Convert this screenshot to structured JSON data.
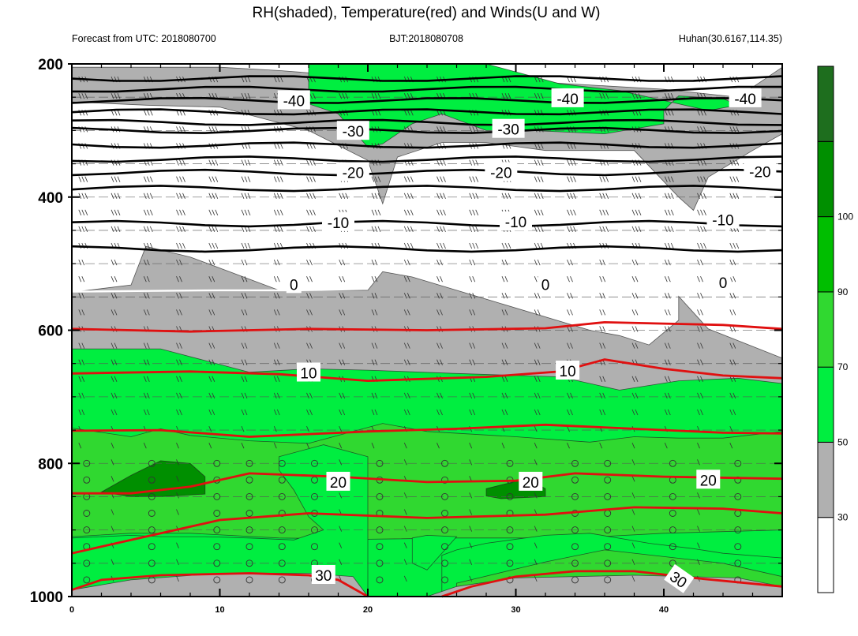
{
  "chart_data": {
    "type": "time-height cross section",
    "title": "RH(shaded), Temperature(red) and Winds(U and W)",
    "subtitle_left": "Forecast from UTC: 2018080700",
    "subtitle_center": "BJT:2018080708",
    "subtitle_right": "Huhan(30.6167,114.35)",
    "xlim": [
      0,
      48
    ],
    "ylim": [
      1000,
      200
    ],
    "y_ticks": [
      "200",
      "400",
      "600",
      "800",
      "1000"
    ],
    "x_ticks": [
      "0",
      "10",
      "20",
      "30",
      "40"
    ],
    "colorbar": {
      "labels": [
        "30",
        "50",
        "70",
        "90",
        "100"
      ],
      "colors": [
        "#ffffff",
        "#b0b0b0",
        "#00ee40",
        "#30d830",
        "#00be00",
        "#008f00",
        "#1e6e1e"
      ]
    },
    "contour_labels": [
      {
        "text": "-40",
        "x": 15,
        "p": 255
      },
      {
        "text": "-40",
        "x": 33.5,
        "p": 252
      },
      {
        "text": "-40",
        "x": 45.5,
        "p": 252
      },
      {
        "text": "-30",
        "x": 19,
        "p": 301
      },
      {
        "text": "-30",
        "x": 29.5,
        "p": 298
      },
      {
        "text": "-20",
        "x": 19,
        "p": 363
      },
      {
        "text": "-20",
        "x": 29,
        "p": 363
      },
      {
        "text": "-20",
        "x": 46.5,
        "p": 362
      },
      {
        "text": "-10",
        "x": 18,
        "p": 438
      },
      {
        "text": "-10",
        "x": 30,
        "p": 437
      },
      {
        "text": "-10",
        "x": 44,
        "p": 434
      },
      {
        "text": "0",
        "x": 15,
        "p": 531
      },
      {
        "text": "0",
        "x": 32,
        "p": 531
      },
      {
        "text": "0",
        "x": 44,
        "p": 528
      },
      {
        "text": "10",
        "x": 16,
        "p": 664
      },
      {
        "text": "10",
        "x": 33.5,
        "p": 661
      },
      {
        "text": "20",
        "x": 18,
        "p": 828
      },
      {
        "text": "20",
        "x": 31,
        "p": 828
      },
      {
        "text": "20",
        "x": 43,
        "p": 825
      },
      {
        "text": "30",
        "x": 17,
        "p": 968
      },
      {
        "text": "30",
        "x": 41,
        "p": 974
      }
    ]
  }
}
